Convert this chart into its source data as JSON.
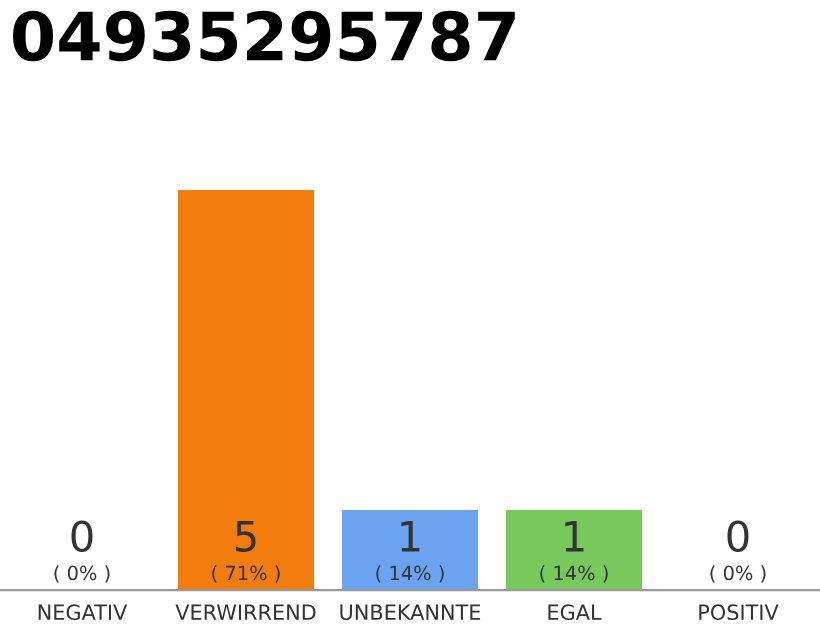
{
  "chart_data": {
    "type": "bar",
    "title": "04935295787",
    "categories": [
      "NEGATIV",
      "VERWIRREND",
      "UNBEKANNTE",
      "EGAL",
      "POSITIV"
    ],
    "values": [
      0,
      5,
      1,
      1,
      0
    ],
    "colors": [
      "#cccccc",
      "#f27c0d",
      "#6aa4f0",
      "#78c95c",
      "#cccccc"
    ],
    "value_labels": [
      "0\n( 0% )",
      "5\n( 71% )",
      "1\n( 14% )",
      "1\n( 14% )",
      "0\n( 0% )"
    ],
    "grid": false,
    "legend": false
  }
}
